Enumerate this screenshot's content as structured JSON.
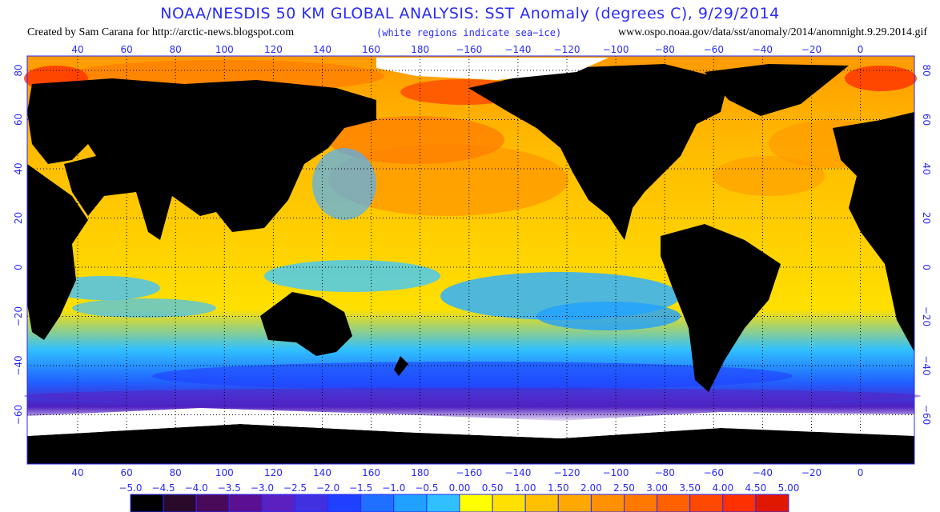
{
  "title": "NOAA/NESDIS 50 KM GLOBAL ANALYSIS: SST Anomaly (degrees C), 9/29/2014",
  "credit": "Created by Sam Carana for http://arctic-news.blogspot.com",
  "note": "(white regions indicate sea−ice)",
  "source": "www.ospo.noaa.gov/data/sst/anomaly/2014/anomnight.9.29.2014.gif",
  "lon_labels": [
    "40",
    "60",
    "80",
    "100",
    "120",
    "140",
    "160",
    "180",
    "−160",
    "−140",
    "−120",
    "−100",
    "−80",
    "−60",
    "−40",
    "−20",
    "0"
  ],
  "lat_labels": [
    "80",
    "60",
    "40",
    "20",
    "0",
    "−20",
    "−40",
    "−60"
  ],
  "colorbar": {
    "labels": [
      "−5.0",
      "−4.5",
      "−4.0",
      "−3.5",
      "−3.0",
      "−2.5",
      "−2.0",
      "−1.5",
      "−1.0",
      "−0.5",
      "0.00",
      "0.50",
      "1.00",
      "1.50",
      "2.00",
      "2.50",
      "3.00",
      "3.50",
      "4.00",
      "4.50",
      "5.00"
    ],
    "colors": [
      "#000000",
      "#2a0a2a",
      "#4a0a5a",
      "#5a1090",
      "#5a20c0",
      "#4030e0",
      "#2040ff",
      "#2070ff",
      "#20a0ff",
      "#30c0ff",
      "#ffff00",
      "#ffe000",
      "#ffc000",
      "#ffa800",
      "#ff9000",
      "#ff7800",
      "#ff6000",
      "#ff4800",
      "#ff3000",
      "#e01800"
    ]
  },
  "colors": {
    "land": "#000000",
    "ice": "#ffffff",
    "grid": "#000000",
    "accent": "#2a2aff"
  }
}
